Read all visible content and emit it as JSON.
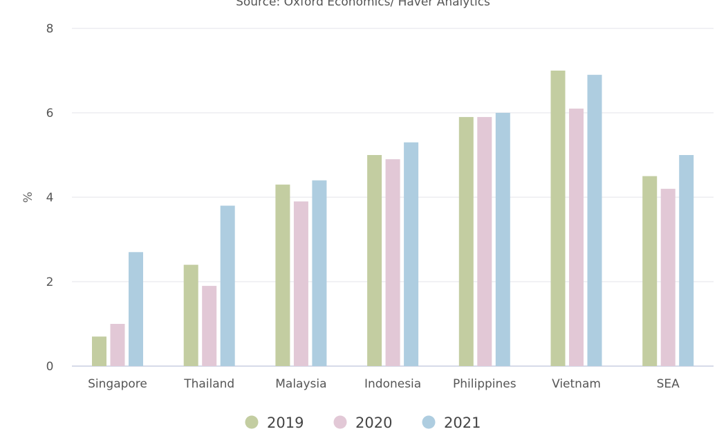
{
  "chart_data": {
    "type": "bar",
    "source": "Source: Oxford Economics/ Haver Analytics",
    "ylabel": "%",
    "ylim": [
      0,
      8
    ],
    "yticks": [
      "0",
      "2",
      "4",
      "6",
      "8"
    ],
    "categories": [
      "Singapore",
      "Thailand",
      "Malaysia",
      "Indonesia",
      "Philippines",
      "Vietnam",
      "SEA"
    ],
    "series": [
      {
        "name": "2019",
        "color": "#c3cda1",
        "values": [
          0.7,
          2.4,
          4.3,
          5.0,
          5.9,
          7.0,
          4.5
        ]
      },
      {
        "name": "2020",
        "color": "#e2c8d6",
        "values": [
          1.0,
          1.9,
          3.9,
          4.9,
          5.9,
          6.1,
          4.2
        ]
      },
      {
        "name": "2021",
        "color": "#aecde0",
        "values": [
          2.7,
          3.8,
          4.4,
          5.3,
          6.0,
          6.9,
          5.0
        ]
      }
    ],
    "grid": true,
    "legend_position": "bottom"
  }
}
